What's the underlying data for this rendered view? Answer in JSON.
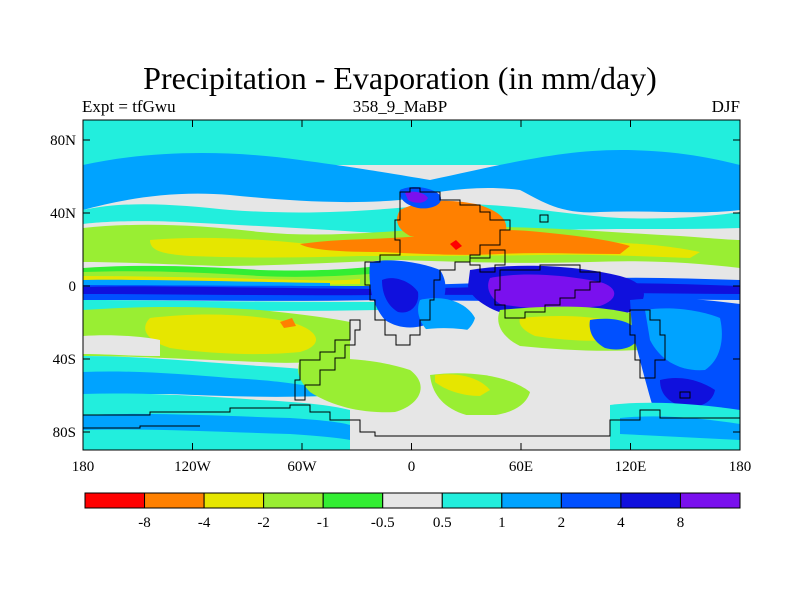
{
  "title": "Precipitation - Evaporation (in mm/day)",
  "subtitle_left": "Expt = tfGwu",
  "subtitle_center": "358_9_MaBP",
  "subtitle_right": "DJF",
  "x_ticks": [
    "180",
    "120W",
    "60W",
    "0",
    "60E",
    "120E",
    "180"
  ],
  "y_ticks": [
    "80N",
    "40N",
    "0",
    "40S",
    "80S"
  ],
  "colorbar": {
    "colors": [
      "#ff0000",
      "#ff8000",
      "#e6e600",
      "#99ee33",
      "#33ee33",
      "#e6e6e6",
      "#22eedd",
      "#00a3ff",
      "#0050ff",
      "#1010dd",
      "#7a10ee"
    ],
    "labels": [
      "-8",
      "-4",
      "-2",
      "-1",
      "-0.5",
      "0.5",
      "1",
      "2",
      "4",
      "8"
    ]
  }
}
